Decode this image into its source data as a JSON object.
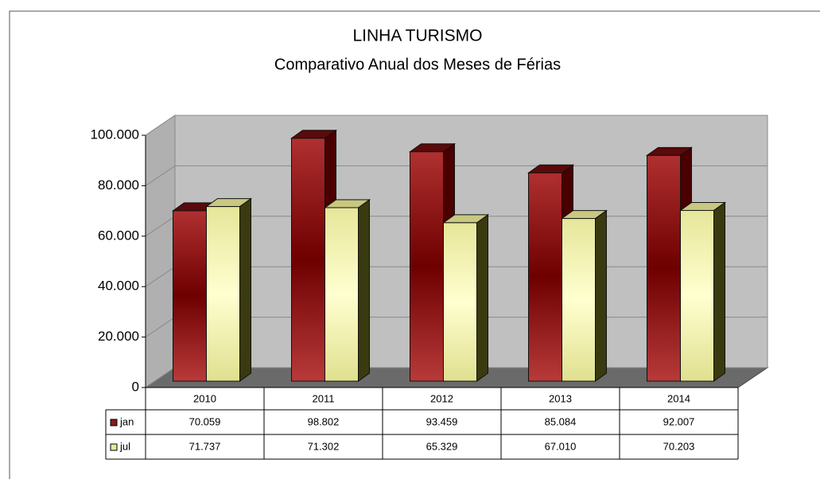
{
  "chart_data": {
    "type": "bar3d",
    "title": "LINHA TURISMO",
    "subtitle": "Comparativo Anual dos Meses de Férias",
    "categories": [
      "2010",
      "2011",
      "2012",
      "2013",
      "2014"
    ],
    "series": [
      {
        "name": "jan",
        "color": "#8b1a1a",
        "values": [
          70059,
          98802,
          93459,
          85084,
          92007
        ],
        "value_labels": [
          "70.059",
          "98.802",
          "93.459",
          "85.084",
          "92.007"
        ]
      },
      {
        "name": "jul",
        "color": "#e8e89a",
        "values": [
          71737,
          71302,
          65329,
          67010,
          70203
        ],
        "value_labels": [
          "71.737",
          "71.302",
          "65.329",
          "67.010",
          "70.203"
        ]
      }
    ],
    "ylim": [
      0,
      100000
    ],
    "yticks": [
      0,
      {
        "value": 20000,
        "label": "20.000"
      },
      {
        "value": 40000,
        "label": "40.000"
      },
      {
        "value": 60000,
        "label": "60.000"
      },
      {
        "value": 80000,
        "label": "80.000"
      },
      {
        "value": 100000,
        "label": "100.000"
      }
    ],
    "grid": true
  }
}
